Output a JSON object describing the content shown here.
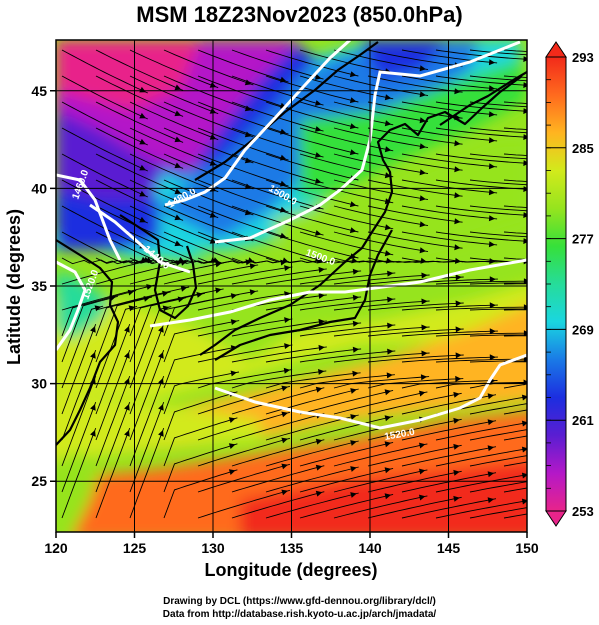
{
  "title": "MSM 18Z23Nov2023 (850.0hPa)",
  "x_axis": {
    "label": "Longitude (degrees)",
    "ticks": [
      {
        "value": 120,
        "label": "120"
      },
      {
        "value": 125,
        "label": "125"
      },
      {
        "value": 130,
        "label": "130"
      },
      {
        "value": 135,
        "label": "135"
      },
      {
        "value": 140,
        "label": "140"
      },
      {
        "value": 145,
        "label": "145"
      },
      {
        "value": 150,
        "label": "150"
      }
    ],
    "range": [
      120,
      150
    ]
  },
  "y_axis": {
    "label": "Latitude  (degrees)",
    "ticks": [
      {
        "value": 25,
        "label": "25"
      },
      {
        "value": 30,
        "label": "30"
      },
      {
        "value": 35,
        "label": "35"
      },
      {
        "value": 40,
        "label": "40"
      },
      {
        "value": 45,
        "label": "45"
      }
    ],
    "range": [
      22.4,
      47.6
    ]
  },
  "colorbar": {
    "min": 253,
    "max": 293,
    "labels": [
      "293",
      "285",
      "277",
      "269",
      "261",
      "253"
    ],
    "colors": [
      "#e8248a",
      "#b418c8",
      "#5a1ed2",
      "#1c2ee0",
      "#1a7ae6",
      "#1ad6e0",
      "#26dc9a",
      "#36e03a",
      "#96e41e",
      "#d2ea1c",
      "#ffb420",
      "#ff6a1e",
      "#f22a1a"
    ]
  },
  "contours": [
    {
      "label": "1460.0"
    },
    {
      "label": "1440.0"
    },
    {
      "label": "1480.0"
    },
    {
      "label": "1500.0"
    },
    {
      "label": "1520.0"
    },
    {
      "label": "1500.0"
    },
    {
      "label": "1520.0"
    }
  ],
  "credits": {
    "line1": "Drawing by DCL (https://www.gfd-dennou.org/library/dcl/)",
    "line2": "Data from http://database.rish.kyoto-u.ac.jp/arch/jmadata/"
  }
}
